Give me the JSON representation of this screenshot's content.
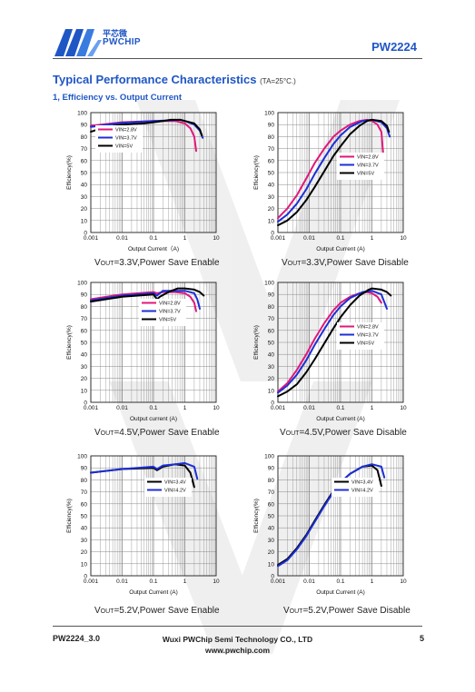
{
  "header": {
    "logo_cn": "平芯微",
    "logo_en": "PWCHIP",
    "part_number": "PW2224"
  },
  "section": {
    "title": "Typical Performance Characteristics",
    "condition": "(TA=25°C.)",
    "subtitle": "1, Efficiency vs. Output Current"
  },
  "footer": {
    "doc_id": "PW2224_3.0",
    "company": "Wuxi PWChip Semi Technology CO., LTD",
    "website": "www.pwchip.com",
    "page": "5"
  },
  "colors": {
    "vin_low": "#e0187a",
    "vin_mid": "#1c2fd6",
    "vin_high": "#000000",
    "brand": "#1f56c5"
  },
  "chart_data": [
    {
      "type": "line",
      "xscale": "log",
      "xlim": [
        0.001,
        10
      ],
      "ylim": [
        0,
        100
      ],
      "grid": true,
      "ylabel": "Efficiency(%)",
      "xlabel": "Output Current（A)",
      "caption": "VOUT=3.3V,Power Save Enable",
      "xticks": [
        "0.001",
        "0.01",
        "0.1",
        "1",
        "10"
      ],
      "yticks": [
        "0",
        "10",
        "20",
        "30",
        "40",
        "50",
        "60",
        "70",
        "80",
        "90",
        "100"
      ],
      "legend_position": "upper-left",
      "series": [
        {
          "name": "VIN=2.8V",
          "color": "#e0187a",
          "x": [
            0.001,
            0.01,
            0.1,
            0.5,
            1,
            1.5,
            2,
            2.3
          ],
          "y": [
            89,
            92,
            93,
            93,
            91,
            87,
            80,
            68
          ]
        },
        {
          "name": "VIN=3.7V",
          "color": "#1c2fd6",
          "x": [
            0.001,
            0.01,
            0.1,
            0.3,
            0.7,
            1,
            2,
            3,
            3.7
          ],
          "y": [
            88,
            91.5,
            93,
            93.5,
            94,
            93,
            90,
            85,
            79
          ]
        },
        {
          "name": "VIN=5V",
          "color": "#000000",
          "x": [
            0.001,
            0.003,
            0.01,
            0.05,
            0.1,
            0.2,
            0.35,
            0.7,
            1,
            2,
            3,
            3.5
          ],
          "y": [
            84,
            88,
            90,
            91,
            92,
            93,
            94,
            94,
            93,
            91,
            86,
            81
          ]
        }
      ]
    },
    {
      "type": "line",
      "xscale": "log",
      "xlim": [
        0.001,
        10
      ],
      "ylim": [
        0,
        100
      ],
      "grid": true,
      "ylabel": "Efficiency(%)",
      "xlabel": "Output Current  (A)",
      "caption": "VOUT=3.3V,Power Save Disable",
      "xticks": [
        "0.001",
        "0.01",
        "0.1",
        "1",
        "10"
      ],
      "yticks": [
        "0",
        "10",
        "20",
        "30",
        "40",
        "50",
        "60",
        "70",
        "80",
        "90",
        "100"
      ],
      "legend_position": "right",
      "series": [
        {
          "name": "VIN=2.8V",
          "color": "#e0187a",
          "x": [
            0.001,
            0.002,
            0.004,
            0.008,
            0.015,
            0.03,
            0.06,
            0.1,
            0.2,
            0.4,
            0.7,
            1,
            1.5,
            2,
            2.3
          ],
          "y": [
            12,
            20,
            31,
            45,
            58,
            70,
            80,
            85,
            90,
            93,
            94,
            93,
            90,
            84,
            65
          ]
        },
        {
          "name": "VIN=3.7V",
          "color": "#1c2fd6",
          "x": [
            0.001,
            0.002,
            0.004,
            0.008,
            0.015,
            0.03,
            0.06,
            0.1,
            0.2,
            0.5,
            1,
            2,
            3,
            3.7
          ],
          "y": [
            9,
            15,
            24,
            36,
            49,
            62,
            74,
            81,
            88,
            93,
            94,
            92,
            87,
            80
          ]
        },
        {
          "name": "VIN=5V",
          "color": "#000000",
          "x": [
            0.001,
            0.002,
            0.004,
            0.008,
            0.015,
            0.03,
            0.06,
            0.1,
            0.2,
            0.4,
            0.7,
            1,
            2,
            3,
            3.5
          ],
          "y": [
            6,
            10,
            17,
            27,
            38,
            51,
            64,
            72,
            82,
            89,
            93,
            94,
            93,
            89,
            84
          ]
        }
      ]
    },
    {
      "type": "line",
      "xscale": "log",
      "xlim": [
        0.001,
        10
      ],
      "ylim": [
        0,
        100
      ],
      "grid": true,
      "ylabel": "Efficiency(%)",
      "xlabel": "Output current (A)",
      "caption": "VOUT=4.5V,Power Save Enable",
      "xticks": [
        "0.001",
        "0.01",
        "0.1",
        "1",
        "10"
      ],
      "yticks": [
        "0",
        "10",
        "20",
        "30",
        "40",
        "50",
        "60",
        "70",
        "80",
        "90",
        "100"
      ],
      "legend_position": "center",
      "series": [
        {
          "name": "VIN=2.8V",
          "color": "#e0187a",
          "x": [
            0.001,
            0.01,
            0.1,
            0.13,
            0.2,
            0.5,
            1,
            1.5,
            2,
            2.3
          ],
          "y": [
            86,
            90,
            92,
            91,
            92,
            92,
            91,
            88,
            83,
            76
          ]
        },
        {
          "name": "VIN=3.7V",
          "color": "#1c2fd6",
          "x": [
            0.001,
            0.01,
            0.1,
            0.13,
            0.2,
            0.5,
            1,
            2,
            2.5,
            3
          ],
          "y": [
            85,
            89,
            91,
            89,
            93,
            93,
            93,
            91,
            86,
            78
          ]
        },
        {
          "name": "VIN=5V",
          "color": "#000000",
          "x": [
            0.001,
            0.01,
            0.1,
            0.13,
            0.16,
            0.3,
            0.6,
            1,
            2,
            3,
            4
          ],
          "y": [
            84,
            88,
            90,
            86,
            88,
            92,
            95,
            95,
            94,
            92,
            89
          ]
        }
      ]
    },
    {
      "type": "line",
      "xscale": "log",
      "xlim": [
        0.001,
        10
      ],
      "ylim": [
        0,
        100
      ],
      "grid": true,
      "ylabel": "Efficiency(%)",
      "xlabel": "Output Current  (A)",
      "caption": "VOUT=4.5V,Power Save Disable",
      "xticks": [
        "0.001",
        "0.01",
        "0.1",
        "1",
        "10"
      ],
      "yticks": [
        "0",
        "10",
        "20",
        "30",
        "40",
        "50",
        "60",
        "70",
        "80",
        "90",
        "100"
      ],
      "legend_position": "right",
      "series": [
        {
          "name": "VIN=2.8V",
          "color": "#e0187a",
          "x": [
            0.001,
            0.002,
            0.004,
            0.008,
            0.015,
            0.03,
            0.06,
            0.1,
            0.2,
            0.4,
            0.7,
            1,
            1.5,
            2
          ],
          "y": [
            9,
            16,
            27,
            40,
            53,
            66,
            77,
            83,
            88,
            91,
            92,
            91,
            88,
            83
          ]
        },
        {
          "name": "VIN=3.7V",
          "color": "#1c2fd6",
          "x": [
            0.001,
            0.002,
            0.004,
            0.008,
            0.015,
            0.03,
            0.06,
            0.1,
            0.2,
            0.5,
            1,
            2,
            3
          ],
          "y": [
            8,
            14,
            23,
            35,
            48,
            61,
            73,
            80,
            87,
            92,
            93,
            90,
            78
          ]
        },
        {
          "name": "VIN=5V",
          "color": "#000000",
          "x": [
            0.001,
            0.002,
            0.004,
            0.008,
            0.015,
            0.03,
            0.06,
            0.1,
            0.2,
            0.4,
            0.8,
            1,
            2,
            3,
            4
          ],
          "y": [
            5,
            9,
            15,
            25,
            36,
            49,
            62,
            71,
            81,
            89,
            94,
            95,
            94,
            92,
            89
          ]
        }
      ]
    },
    {
      "type": "line",
      "xscale": "log",
      "xlim": [
        0.001,
        10
      ],
      "ylim": [
        0,
        100
      ],
      "grid": true,
      "ylabel": "Efficiency(%)",
      "xlabel": "Output Current  (A)",
      "caption": "VOUT=5.2V,Power Save Enable",
      "xticks": [
        "0.001",
        "0.01",
        "0.1",
        "1",
        "10"
      ],
      "yticks": [
        "0",
        "10",
        "20",
        "30",
        "40",
        "50",
        "60",
        "70",
        "80",
        "90",
        "100"
      ],
      "legend_position": "center-right",
      "series": [
        {
          "name": "VIN=3.4V",
          "color": "#000000",
          "x": [
            0.001,
            0.01,
            0.1,
            0.13,
            0.2,
            0.5,
            1,
            1.5,
            2
          ],
          "y": [
            86,
            89,
            90,
            88,
            91,
            93,
            92,
            86,
            74
          ]
        },
        {
          "name": "VIN=4.2V",
          "color": "#1c2fd6",
          "x": [
            0.001,
            0.01,
            0.1,
            0.13,
            0.2,
            0.5,
            1,
            2,
            2.5
          ],
          "y": [
            86,
            89,
            91,
            89,
            92,
            93,
            94,
            91,
            81
          ]
        }
      ]
    },
    {
      "type": "line",
      "xscale": "log",
      "xlim": [
        0.001,
        10
      ],
      "ylim": [
        0,
        100
      ],
      "grid": true,
      "ylabel": "Efficiency(%)",
      "xlabel": "Output Current  (A)",
      "caption": "VOUT=5.2V,Power Save Disable",
      "xticks": [
        "0.001",
        "0.01",
        "0.1",
        "1",
        "10"
      ],
      "yticks": [
        "0",
        "10",
        "20",
        "30",
        "40",
        "50",
        "60",
        "70",
        "80",
        "90",
        "100"
      ],
      "legend_position": "center-right",
      "series": [
        {
          "name": "VIN=3.4V",
          "color": "#000000",
          "x": [
            0.001,
            0.002,
            0.004,
            0.008,
            0.015,
            0.03,
            0.06,
            0.1,
            0.2,
            0.5,
            1,
            1.5,
            2
          ],
          "y": [
            9,
            14,
            23,
            34,
            46,
            59,
            71,
            78,
            85,
            91,
            92,
            88,
            75
          ]
        },
        {
          "name": "VIN=4.2V",
          "color": "#1c2fd6",
          "x": [
            0.001,
            0.002,
            0.004,
            0.008,
            0.015,
            0.03,
            0.06,
            0.1,
            0.2,
            0.5,
            1,
            2,
            2.5
          ],
          "y": [
            8,
            13,
            22,
            33,
            45,
            58,
            70,
            78,
            85,
            91,
            93,
            91,
            82
          ]
        }
      ]
    }
  ]
}
